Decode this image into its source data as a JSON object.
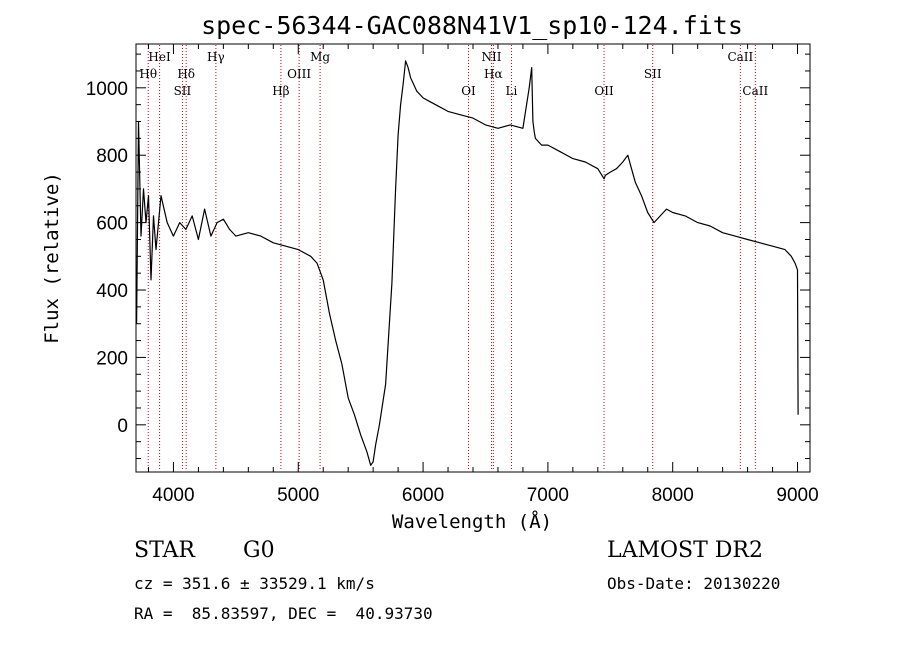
{
  "chart_data": {
    "type": "line",
    "title": "spec-56344-GAC088N41V1_sp10-124.fits",
    "xlabel": "Wavelength (Å)",
    "ylabel": "Flux (relative)",
    "xlim": [
      3700,
      9100
    ],
    "ylim": [
      -140,
      1130
    ],
    "xticks": [
      4000,
      5000,
      6000,
      7000,
      8000,
      9000
    ],
    "yticks": [
      0,
      200,
      400,
      600,
      800,
      1000
    ],
    "grid": false,
    "line_color": "#000000",
    "marker_color": "#cc0000",
    "series": [
      {
        "x": [
          3705,
          3720,
          3740,
          3760,
          3780,
          3800,
          3820,
          3840,
          3860,
          3880,
          3900,
          3950,
          4000,
          4050,
          4100,
          4150,
          4200,
          4250,
          4300,
          4350,
          4400,
          4450,
          4500,
          4600,
          4700,
          4800,
          4900,
          5000,
          5100,
          5150,
          5200,
          5250,
          5300,
          5350,
          5400,
          5450,
          5500,
          5550,
          5580,
          5600,
          5620,
          5650,
          5700,
          5750,
          5780,
          5800,
          5820,
          5840,
          5860,
          5880,
          5900,
          5950,
          6000,
          6050,
          6100,
          6200,
          6300,
          6400,
          6500,
          6600,
          6700,
          6800,
          6850,
          6870,
          6880,
          6890,
          6900,
          6950,
          7000,
          7100,
          7200,
          7300,
          7400,
          7450,
          7460,
          7500,
          7550,
          7600,
          7640,
          7670,
          7700,
          7750,
          7800,
          7850,
          7900,
          7950,
          8000,
          8100,
          8200,
          8300,
          8400,
          8500,
          8600,
          8700,
          8800,
          8900,
          8950,
          8980,
          9000,
          9005
        ],
        "y": [
          300,
          900,
          560,
          700,
          600,
          680,
          430,
          620,
          520,
          600,
          680,
          600,
          560,
          600,
          580,
          620,
          550,
          640,
          560,
          600,
          610,
          580,
          560,
          570,
          560,
          540,
          530,
          520,
          500,
          480,
          430,
          330,
          250,
          180,
          80,
          30,
          -30,
          -80,
          -120,
          -110,
          -60,
          0,
          120,
          420,
          700,
          860,
          950,
          1010,
          1080,
          1060,
          1030,
          990,
          970,
          960,
          950,
          930,
          920,
          910,
          890,
          880,
          890,
          880,
          1000,
          1060,
          900,
          870,
          850,
          830,
          830,
          810,
          790,
          780,
          760,
          730,
          740,
          750,
          760,
          780,
          800,
          760,
          720,
          680,
          630,
          600,
          620,
          640,
          630,
          620,
          600,
          590,
          570,
          560,
          550,
          540,
          530,
          520,
          500,
          480,
          460,
          30
        ]
      }
    ],
    "line_markers": [
      {
        "label": "Hθ",
        "x": 3798,
        "row": 2
      },
      {
        "label": "HeI",
        "x": 3889,
        "row": 1
      },
      {
        "label": "SII",
        "x": 4072,
        "row": 3
      },
      {
        "label": "Hδ",
        "x": 4102,
        "row": 2
      },
      {
        "label": "Hγ",
        "x": 4340,
        "row": 1
      },
      {
        "label": "Hβ",
        "x": 4861,
        "row": 3
      },
      {
        "label": "OIII",
        "x": 5007,
        "row": 2
      },
      {
        "label": "Mg",
        "x": 5175,
        "row": 1
      },
      {
        "label": "OI",
        "x": 6364,
        "row": 3
      },
      {
        "label": "NII",
        "x": 6548,
        "row": 1
      },
      {
        "label": "Hα",
        "x": 6563,
        "row": 2
      },
      {
        "label": "Li",
        "x": 6708,
        "row": 3
      },
      {
        "label": "OII",
        "x": 7450,
        "row": 3
      },
      {
        "label": "SII",
        "x": 7840,
        "row": 2
      },
      {
        "label": "CaII",
        "x": 8542,
        "row": 1
      },
      {
        "label": "CaII",
        "x": 8662,
        "row": 3
      }
    ]
  },
  "info": {
    "object_class": "STAR",
    "subclass": "G0",
    "survey": "LAMOST DR2",
    "cz": "cz = 351.6 ± 33529.1 km/s",
    "obs_date": "Obs-Date: 20130220",
    "coords": "RA =  85.83597, DEC =  40.93730"
  }
}
